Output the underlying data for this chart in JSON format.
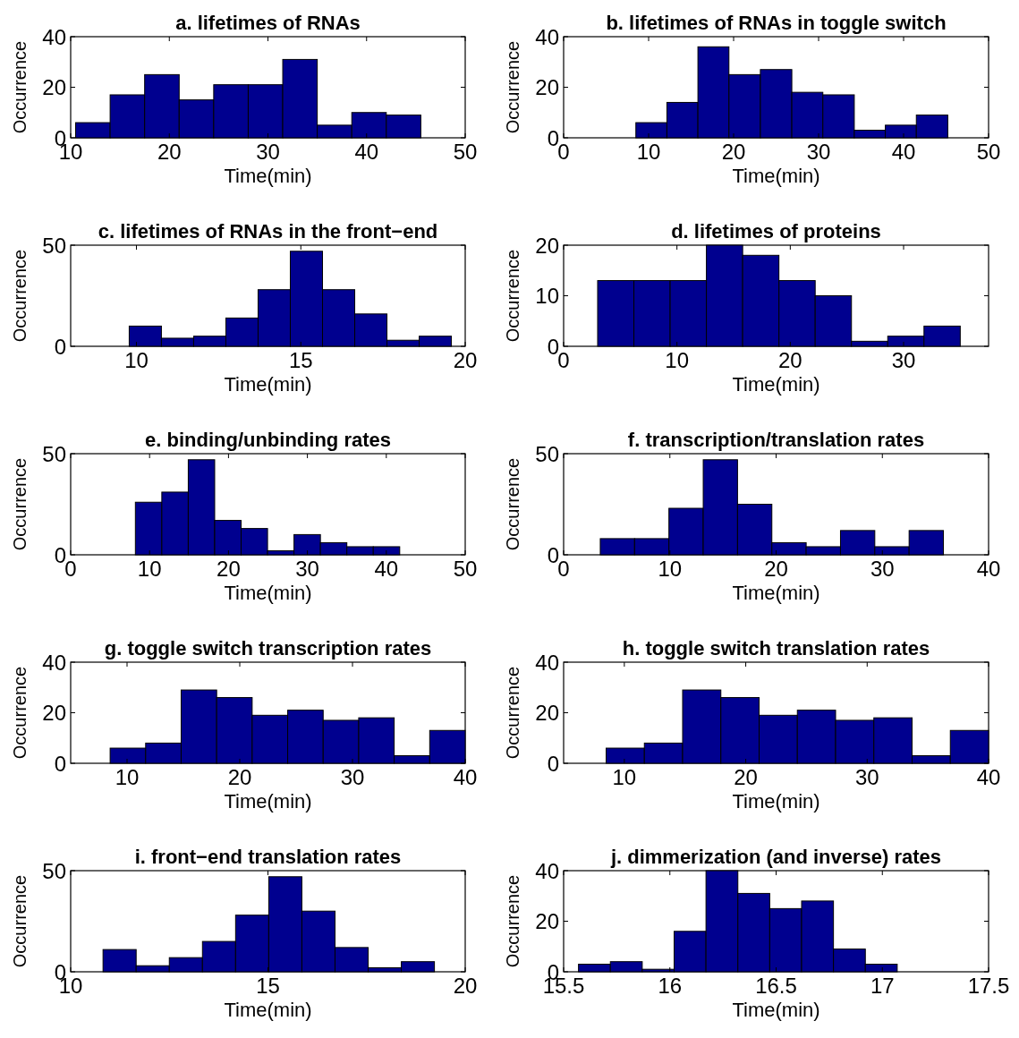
{
  "chart_data": [
    {
      "type": "histogram",
      "title": "a. lifetimes of RNAs",
      "xlabel": "Time(min)",
      "ylabel": "Occurrence",
      "color": "#00008f",
      "bins": [
        10.5,
        14.0,
        17.5,
        21.0,
        24.5,
        28.0,
        31.5,
        35.0,
        38.5,
        42.0,
        45.5
      ],
      "values": [
        6,
        17,
        25,
        15,
        21,
        21,
        31,
        5,
        10,
        9
      ],
      "xlim": [
        10,
        50
      ],
      "xticks": [
        10,
        20,
        30,
        40,
        50
      ],
      "ylim": [
        0,
        40
      ],
      "yticks": [
        0,
        20,
        40
      ]
    },
    {
      "type": "histogram",
      "title": "b. lifetimes of RNAs in toggle switch",
      "xlabel": "Time(min)",
      "ylabel": "Occurrence",
      "color": "#00008f",
      "bins": [
        8.5,
        12.15,
        15.8,
        19.45,
        23.15,
        26.85,
        30.5,
        34.2,
        37.85,
        41.5,
        45.2
      ],
      "values": [
        6,
        14,
        36,
        25,
        27,
        18,
        17,
        3,
        5,
        9
      ],
      "xlim": [
        0,
        50
      ],
      "xticks": [
        0,
        10,
        20,
        30,
        40,
        50
      ],
      "ylim": [
        0,
        40
      ],
      "yticks": [
        0,
        20,
        40
      ]
    },
    {
      "type": "histogram",
      "title": "c. lifetimes of RNAs in the front−end",
      "xlabel": "Time(min)",
      "ylabel": "Occurrence",
      "color": "#00008f",
      "bins": [
        9.78,
        10.76,
        11.74,
        12.72,
        13.7,
        14.68,
        15.66,
        16.64,
        17.62,
        18.6,
        19.58
      ],
      "values": [
        10,
        4,
        5,
        14,
        28,
        47,
        28,
        16,
        3,
        5
      ],
      "xlim": [
        8,
        20
      ],
      "xticks": [
        10,
        15,
        20
      ],
      "ylim": [
        0,
        50
      ],
      "yticks": [
        0,
        50
      ]
    },
    {
      "type": "histogram",
      "title": "d. lifetimes of proteins",
      "xlabel": "Time(min)",
      "ylabel": "Occurrence",
      "color": "#00008f",
      "bins": [
        3.0,
        6.2,
        9.4,
        12.6,
        15.8,
        19.0,
        22.2,
        25.4,
        28.6,
        31.8,
        35.0
      ],
      "values": [
        13,
        13,
        13,
        20,
        18,
        13,
        10,
        1,
        2,
        4
      ],
      "xlim": [
        0,
        37.5
      ],
      "xticks": [
        0,
        10,
        20,
        30
      ],
      "ylim": [
        0,
        20
      ],
      "yticks": [
        0,
        10,
        20
      ]
    },
    {
      "type": "histogram",
      "title": "e. binding/unbinding rates",
      "xlabel": "Time(min)",
      "ylabel": "Occurrence",
      "color": "#00008f",
      "bins": [
        8.2,
        11.55,
        14.9,
        18.25,
        21.6,
        24.95,
        28.3,
        31.65,
        35.0,
        38.35,
        41.7
      ],
      "values": [
        26,
        31,
        47,
        17,
        13,
        2,
        10,
        6,
        4,
        4
      ],
      "xlim": [
        0,
        50
      ],
      "xticks": [
        0,
        10,
        20,
        30,
        40,
        50
      ],
      "ylim": [
        0,
        50
      ],
      "yticks": [
        0,
        50
      ]
    },
    {
      "type": "histogram",
      "title": "f. transcription/translation rates",
      "xlabel": "Time(min)",
      "ylabel": "Occurrence",
      "color": "#00008f",
      "bins": [
        3.45,
        6.68,
        9.91,
        13.14,
        16.37,
        19.6,
        22.83,
        26.06,
        29.29,
        32.52,
        35.75
      ],
      "values": [
        8,
        8,
        23,
        47,
        25,
        6,
        4,
        12,
        4,
        12
      ],
      "xlim": [
        0,
        40
      ],
      "xticks": [
        0,
        10,
        20,
        30,
        40
      ],
      "ylim": [
        0,
        50
      ],
      "yticks": [
        0,
        50
      ]
    },
    {
      "type": "histogram",
      "title": "g. toggle switch transcription rates",
      "xlabel": "Time(min)",
      "ylabel": "Occurrence",
      "color": "#00008f",
      "bins": [
        8.5,
        11.65,
        14.8,
        17.95,
        21.1,
        24.25,
        27.4,
        30.55,
        33.7,
        36.85,
        40.0
      ],
      "values": [
        6,
        8,
        29,
        26,
        19,
        21,
        17,
        18,
        3,
        13
      ],
      "xlim": [
        5,
        40
      ],
      "xticks": [
        10,
        20,
        30,
        40
      ],
      "ylim": [
        0,
        40
      ],
      "yticks": [
        0,
        20,
        40
      ]
    },
    {
      "type": "histogram",
      "title": "h. toggle switch translation rates",
      "xlabel": "Time(min)",
      "ylabel": "Occurrence",
      "color": "#00008f",
      "bins": [
        8.5,
        11.65,
        14.8,
        17.95,
        21.1,
        24.25,
        27.4,
        30.55,
        33.7,
        36.85,
        40.0
      ],
      "values": [
        6,
        8,
        29,
        26,
        19,
        21,
        17,
        18,
        3,
        13
      ],
      "xlim": [
        5,
        40
      ],
      "xticks": [
        10,
        20,
        30,
        40
      ],
      "ylim": [
        0,
        40
      ],
      "yticks": [
        0,
        20,
        40
      ]
    },
    {
      "type": "histogram",
      "title": "i. front−end translation rates",
      "xlabel": "Time(min)",
      "ylabel": "Occurrence",
      "color": "#00008f",
      "bins": [
        10.82,
        11.66,
        12.5,
        13.34,
        14.18,
        15.02,
        15.86,
        16.7,
        17.54,
        18.38,
        19.22
      ],
      "values": [
        11,
        3,
        7,
        15,
        28,
        47,
        30,
        12,
        2,
        5
      ],
      "xlim": [
        10,
        20
      ],
      "xticks": [
        10,
        15,
        20
      ],
      "ylim": [
        0,
        50
      ],
      "yticks": [
        0,
        50
      ]
    },
    {
      "type": "histogram",
      "title": "j. dimmerization (and inverse) rates",
      "xlabel": "Time(min)",
      "ylabel": "Occurrence",
      "color": "#00008f",
      "bins": [
        15.57,
        15.72,
        15.87,
        16.02,
        16.17,
        16.32,
        16.47,
        16.62,
        16.77,
        16.92,
        17.07
      ],
      "values": [
        3,
        4,
        1,
        16,
        40,
        31,
        25,
        28,
        9,
        3
      ],
      "xlim": [
        15.5,
        17.5
      ],
      "xticks": [
        15.5,
        16,
        16.5,
        17,
        17.5
      ],
      "ylim": [
        0,
        40
      ],
      "yticks": [
        0,
        20,
        40
      ]
    }
  ]
}
